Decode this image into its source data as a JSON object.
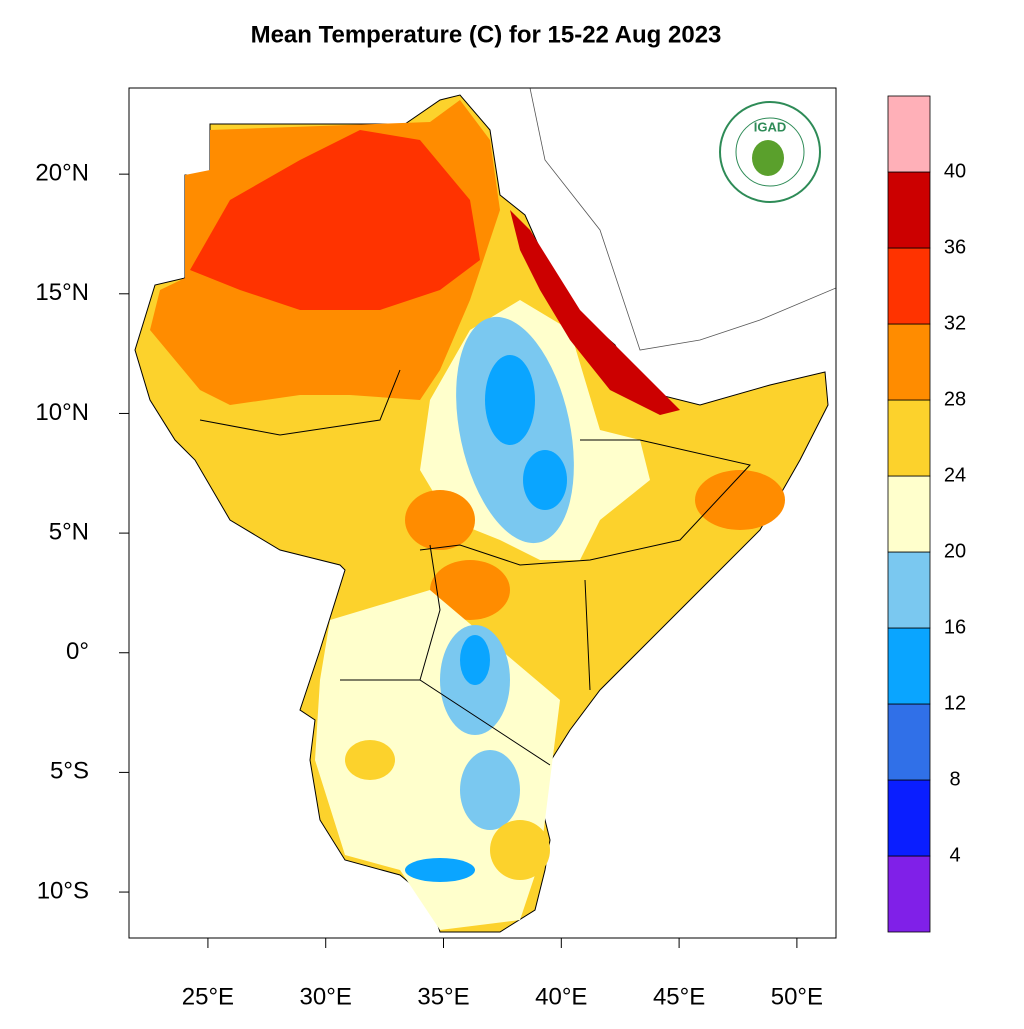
{
  "title": "Mean Temperature (C) for 15-22 Aug 2023",
  "logo": {
    "text": "IGAD"
  },
  "map": {
    "xlim": [
      21.65,
      51.66
    ],
    "ylim": [
      -11.92,
      23.6
    ],
    "xticks": [
      {
        "value": 25,
        "label": "25°E"
      },
      {
        "value": 30,
        "label": "30°E"
      },
      {
        "value": 35,
        "label": "35°E"
      },
      {
        "value": 40,
        "label": "40°E"
      },
      {
        "value": 45,
        "label": "45°E"
      },
      {
        "value": 50,
        "label": "50°E"
      }
    ],
    "yticks": [
      {
        "value": 20,
        "label": "20°N"
      },
      {
        "value": 15,
        "label": "15°N"
      },
      {
        "value": 10,
        "label": "10°N"
      },
      {
        "value": 5,
        "label": "5°N"
      },
      {
        "value": 0,
        "label": "0°"
      },
      {
        "value": -5,
        "label": "5°S"
      },
      {
        "value": -10,
        "label": "10°S"
      }
    ]
  },
  "colorbar": {
    "levels": [
      4,
      8,
      12,
      16,
      20,
      24,
      28,
      32,
      36,
      40
    ],
    "colors": [
      "#8020e8",
      "#0a1eff",
      "#3070e8",
      "#0aa5ff",
      "#7ac8f0",
      "#ffffcc",
      "#fcd22c",
      "#ff8c00",
      "#ff3300",
      "#cc0000",
      "#ffb0b8"
    ]
  }
}
